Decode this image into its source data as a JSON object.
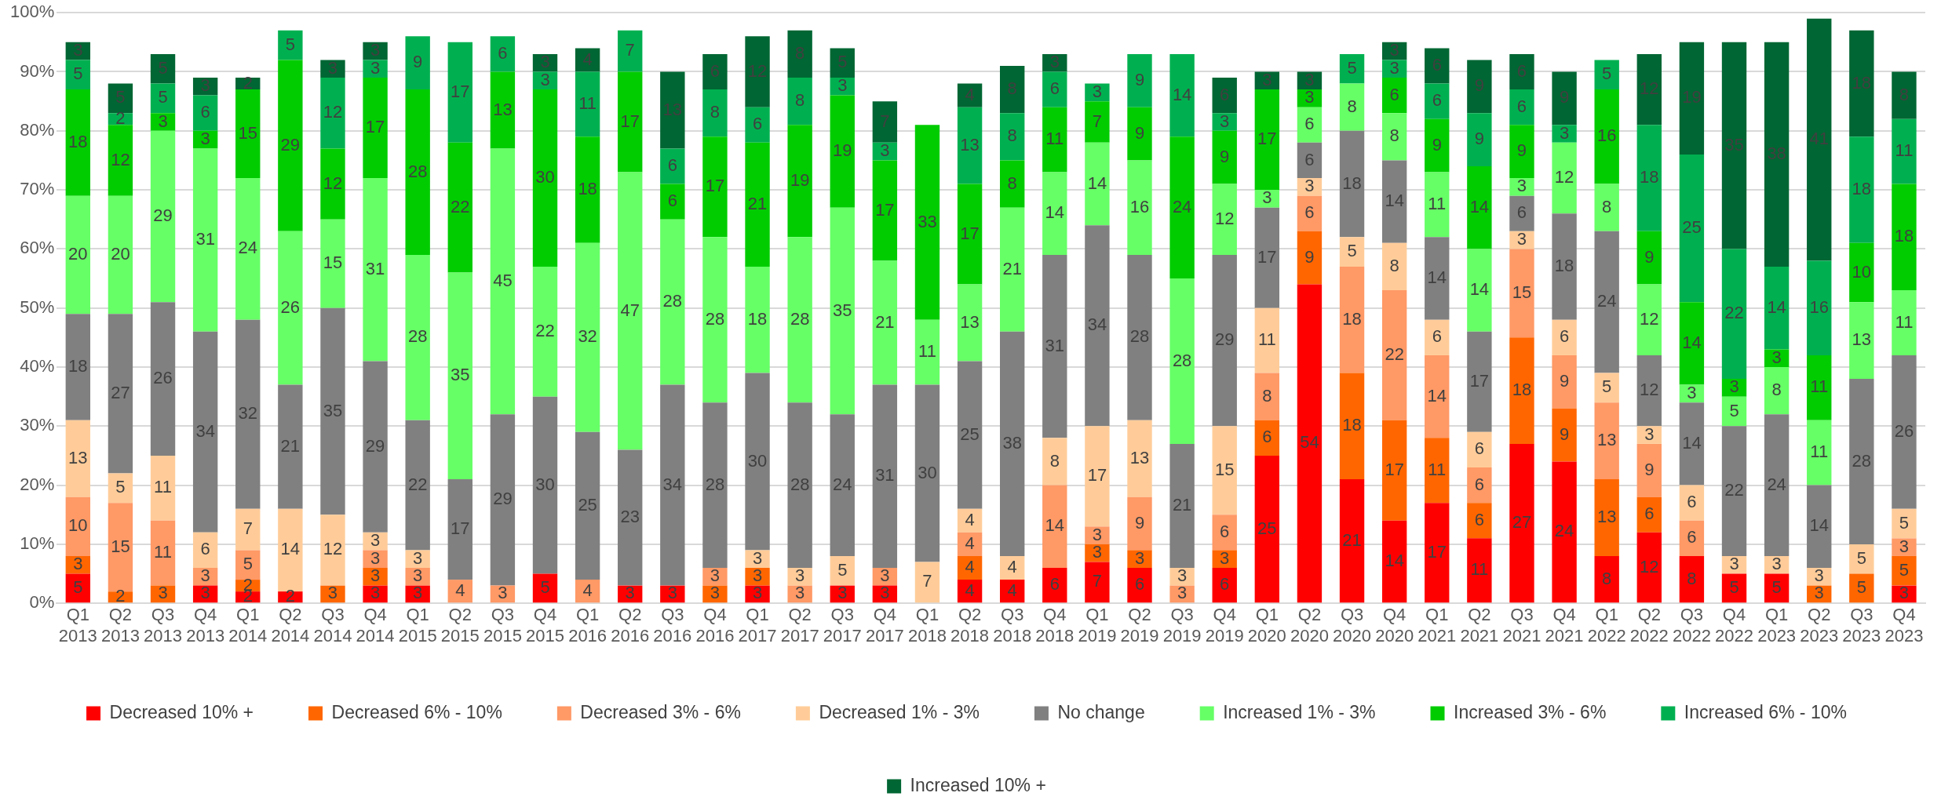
{
  "chart_data": {
    "type": "bar",
    "stacked": true,
    "data_labels": true,
    "grid": "y",
    "legend": "bottom",
    "categories": [
      "Q1 2013",
      "Q2 2013",
      "Q3 2013",
      "Q4 2013",
      "Q1 2014",
      "Q2 2014",
      "Q3 2014",
      "Q4 2014",
      "Q1 2015",
      "Q2 2015",
      "Q3 2015",
      "Q4 2015",
      "Q1 2016",
      "Q2 2016",
      "Q3 2016",
      "Q4 2016",
      "Q1 2017",
      "Q2 2017",
      "Q3 2017",
      "Q4 2017",
      "Q1 2018",
      "Q2 2018",
      "Q3 2018",
      "Q4 2018",
      "Q1 2019",
      "Q2 2019",
      "Q3 2019",
      "Q4 2019",
      "Q1 2020",
      "Q2 2020",
      "Q3 2020",
      "Q4 2020",
      "Q1 2021",
      "Q2 2021",
      "Q3 2021",
      "Q4 2021",
      "Q1 2022",
      "Q2 2022",
      "Q3 2022",
      "Q4 2022",
      "Q1 2023",
      "Q2 2023",
      "Q3 2023",
      "Q4 2023"
    ],
    "ylim": [
      0,
      100
    ],
    "yticks": [
      {
        "value": 0,
        "label": "0%"
      },
      {
        "value": 10,
        "label": "10%"
      },
      {
        "value": 20,
        "label": "20%"
      },
      {
        "value": 30,
        "label": "30%"
      },
      {
        "value": 40,
        "label": "40%"
      },
      {
        "value": 50,
        "label": "50%"
      },
      {
        "value": 60,
        "label": "60%"
      },
      {
        "value": 70,
        "label": "70%"
      },
      {
        "value": 80,
        "label": "80%"
      },
      {
        "value": 90,
        "label": "90%"
      },
      {
        "value": 100,
        "label": "100%"
      }
    ],
    "series": [
      {
        "name": "Decreased 10% +",
        "color": "#ff0000",
        "values": [
          5,
          null,
          null,
          3,
          2,
          2,
          null,
          3,
          3,
          null,
          null,
          5,
          null,
          3,
          3,
          null,
          3,
          null,
          3,
          3,
          null,
          4,
          4,
          6,
          7,
          6,
          null,
          6,
          25,
          54,
          21,
          14,
          17,
          11,
          27,
          24,
          8,
          12,
          8,
          5,
          5,
          null,
          null,
          3
        ]
      },
      {
        "name": "Decreased 6% - 10%",
        "color": "#ff6600",
        "values": [
          3,
          2,
          3,
          null,
          2,
          null,
          3,
          3,
          null,
          null,
          null,
          null,
          null,
          null,
          null,
          3,
          3,
          null,
          null,
          null,
          null,
          4,
          null,
          null,
          3,
          3,
          null,
          3,
          6,
          9,
          18,
          17,
          11,
          6,
          18,
          9,
          13,
          6,
          null,
          null,
          null,
          3,
          5,
          5
        ]
      },
      {
        "name": "Decreased 3% - 6%",
        "color": "#ff9966",
        "values": [
          10,
          15,
          11,
          3,
          5,
          null,
          null,
          3,
          3,
          4,
          3,
          null,
          4,
          null,
          null,
          3,
          null,
          3,
          null,
          3,
          null,
          4,
          null,
          14,
          3,
          9,
          3,
          6,
          8,
          6,
          18,
          22,
          14,
          6,
          15,
          9,
          13,
          9,
          6,
          null,
          null,
          null,
          null,
          3
        ]
      },
      {
        "name": "Decreased 1% - 3%",
        "color": "#ffcc99",
        "values": [
          13,
          5,
          11,
          6,
          7,
          14,
          12,
          3,
          3,
          null,
          null,
          null,
          null,
          null,
          null,
          null,
          3,
          3,
          5,
          null,
          7,
          4,
          4,
          8,
          17,
          13,
          3,
          15,
          11,
          3,
          5,
          8,
          6,
          6,
          3,
          6,
          5,
          3,
          6,
          3,
          3,
          3,
          5,
          5
        ]
      },
      {
        "name": "No change",
        "color": "#808080",
        "values": [
          18,
          27,
          26,
          34,
          32,
          21,
          35,
          29,
          22,
          17,
          29,
          30,
          25,
          23,
          34,
          28,
          30,
          28,
          24,
          31,
          30,
          25,
          38,
          31,
          34,
          28,
          21,
          29,
          17,
          6,
          18,
          14,
          14,
          17,
          6,
          18,
          24,
          12,
          14,
          22,
          24,
          14,
          28,
          26
        ]
      },
      {
        "name": "Increased 1% - 3%",
        "color": "#66ff66",
        "values": [
          20,
          20,
          29,
          31,
          24,
          26,
          15,
          31,
          28,
          35,
          45,
          22,
          32,
          47,
          28,
          28,
          18,
          28,
          35,
          21,
          11,
          13,
          21,
          14,
          14,
          16,
          28,
          12,
          3,
          6,
          8,
          8,
          11,
          14,
          3,
          12,
          8,
          12,
          3,
          5,
          8,
          11,
          13,
          11
        ]
      },
      {
        "name": "Increased 3% - 6%",
        "color": "#00cc00",
        "values": [
          18,
          12,
          3,
          3,
          15,
          29,
          12,
          17,
          28,
          22,
          13,
          30,
          18,
          17,
          6,
          17,
          21,
          19,
          19,
          17,
          33,
          17,
          8,
          11,
          7,
          9,
          24,
          9,
          17,
          3,
          null,
          6,
          9,
          14,
          9,
          null,
          16,
          9,
          14,
          3,
          3,
          11,
          10,
          18
        ]
      },
      {
        "name": "Increased 6% - 10%",
        "color": "#00b050",
        "values": [
          5,
          2,
          5,
          6,
          null,
          5,
          12,
          3,
          9,
          17,
          6,
          3,
          11,
          7,
          6,
          8,
          6,
          8,
          3,
          3,
          null,
          13,
          8,
          6,
          3,
          9,
          14,
          3,
          null,
          null,
          5,
          3,
          6,
          9,
          6,
          3,
          5,
          18,
          25,
          22,
          14,
          16,
          18,
          11
        ]
      },
      {
        "name": "Increased 10% +",
        "color": "#006633",
        "values": [
          3,
          5,
          5,
          3,
          2,
          null,
          3,
          3,
          null,
          null,
          null,
          3,
          4,
          null,
          13,
          6,
          12,
          8,
          5,
          7,
          null,
          4,
          8,
          3,
          null,
          null,
          null,
          6,
          3,
          3,
          null,
          3,
          6,
          9,
          6,
          9,
          null,
          12,
          19,
          35,
          38,
          41,
          18,
          8
        ]
      }
    ]
  }
}
